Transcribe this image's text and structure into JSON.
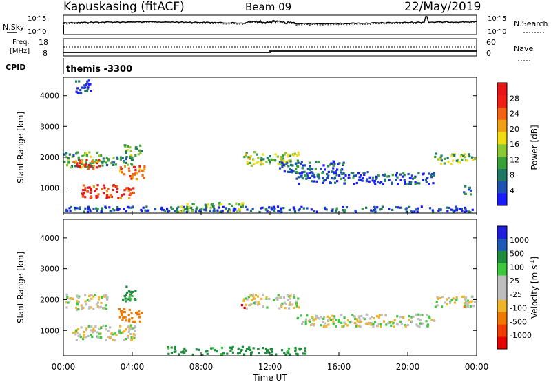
{
  "header": {
    "station": "Kapuskasing (fitACF)",
    "beam": "Beam 09",
    "date": "22/May/2019"
  },
  "side_labels": {
    "nsky": "N.Sky",
    "nsearch": "N.Search",
    "freq_line1": "Freq.",
    "freq_line2": "[MHz]",
    "nave": "Nave",
    "cpid": "CPID"
  },
  "panel_ticks": {
    "noise_left_top": "10^5",
    "noise_left_bottom": "10^0",
    "noise_right_top": "10^5",
    "noise_right_bottom": "10^0",
    "freq_left_top": "18",
    "freq_left_bottom": "8",
    "nave_right_top": "60",
    "nave_right_bottom": "0"
  },
  "cpid_text": "themis -3300",
  "colors": {
    "ground_scatter": "#bebebe",
    "power_scale": [
      "#1a1aff",
      "#1e4fb4",
      "#1e7864",
      "#37a037",
      "#8cc832",
      "#f0dc14",
      "#f0a014",
      "#f06414",
      "#f01e14",
      "#e61414"
    ],
    "velocity_scale": [
      "#e60000",
      "#f03c00",
      "#f07800",
      "#f0b428",
      "#bebebe",
      "#bebebe",
      "#3cc83c",
      "#1e8c3c",
      "#1e5ab4",
      "#1e1edc"
    ]
  },
  "chart_data": [
    {
      "type": "heatmap",
      "title": "",
      "xlabel": "",
      "ylabel": "Slant Range [km]",
      "colorbar_label": "Power [dB]",
      "colorbar_ticks": [
        "4",
        "8",
        "12",
        "16",
        "20",
        "24",
        "28"
      ],
      "xlim": [
        "00:00",
        "24:00"
      ],
      "ylim": [
        180,
        4600
      ],
      "yticks": [
        1000,
        2000,
        3000,
        4000
      ],
      "blobs": [
        {
          "t0": 0.0,
          "t1": 2.3,
          "r0": 1700,
          "r1": 2200,
          "p": 12
        },
        {
          "t0": 0.4,
          "t1": 2.2,
          "r0": 1650,
          "r1": 1950,
          "p": 24
        },
        {
          "t0": 2.0,
          "t1": 4.0,
          "r0": 1750,
          "r1": 2050,
          "p": 10
        },
        {
          "t0": 1.0,
          "t1": 4.1,
          "r0": 700,
          "r1": 1150,
          "p": 26
        },
        {
          "t0": 3.2,
          "t1": 4.7,
          "r0": 1300,
          "r1": 1750,
          "p": 22
        },
        {
          "t0": 3.5,
          "t1": 4.6,
          "r0": 2000,
          "r1": 2450,
          "p": 12
        },
        {
          "t0": 6.5,
          "t1": 10.5,
          "r0": 250,
          "r1": 550,
          "p": 14
        },
        {
          "t0": 10.4,
          "t1": 13.6,
          "r0": 1750,
          "r1": 2200,
          "p": 14
        },
        {
          "t0": 12.5,
          "t1": 16.3,
          "r0": 1500,
          "r1": 1900,
          "p": 8
        },
        {
          "t0": 13.5,
          "t1": 21.5,
          "r0": 1150,
          "r1": 1550,
          "p": 6
        },
        {
          "t0": 21.5,
          "t1": 24.0,
          "r0": 1800,
          "r1": 2150,
          "p": 14
        },
        {
          "t0": 23.2,
          "t1": 24.0,
          "r0": 800,
          "r1": 1100,
          "p": 8
        },
        {
          "t0": 0.0,
          "t1": 24.0,
          "r0": 180,
          "r1": 420,
          "p": 6
        },
        {
          "t0": 0.6,
          "t1": 1.6,
          "r0": 4100,
          "r1": 4550,
          "p": 4
        }
      ]
    },
    {
      "type": "heatmap",
      "title": "",
      "xlabel": "Time UT",
      "ylabel": "Slant Range [km]",
      "colorbar_label": "Velocity [m s^-1]",
      "colorbar_ticks": [
        "1000",
        "500",
        "100",
        "25",
        "-25",
        "-100",
        "-500",
        "-1000"
      ],
      "xlim": [
        "00:00",
        "24:00"
      ],
      "xticks": [
        "00:00",
        "04:00",
        "08:00",
        "12:00",
        "16:00",
        "20:00",
        "00:00"
      ],
      "ylim": [
        180,
        4600
      ],
      "yticks": [
        1000,
        2000,
        3000,
        4000
      ],
      "blobs": [
        {
          "t0": 0.0,
          "t1": 2.5,
          "r0": 1700,
          "r1": 2200,
          "v": 0
        },
        {
          "t0": 0.5,
          "t1": 4.2,
          "r0": 700,
          "r1": 1200,
          "v": 0
        },
        {
          "t0": 3.2,
          "t1": 4.6,
          "r0": 1300,
          "r1": 1750,
          "v": -150
        },
        {
          "t0": 3.4,
          "t1": 4.2,
          "r0": 1950,
          "r1": 2450,
          "v": 150
        },
        {
          "t0": 10.4,
          "t1": 13.6,
          "r0": 1750,
          "r1": 2200,
          "v": 0
        },
        {
          "t0": 13.5,
          "t1": 21.5,
          "r0": 1150,
          "r1": 1550,
          "v": 0
        },
        {
          "t0": 21.5,
          "t1": 24.0,
          "r0": 1800,
          "r1": 2150,
          "v": 0
        },
        {
          "t0": 6.0,
          "t1": 14.0,
          "r0": 200,
          "r1": 500,
          "v": 150
        },
        {
          "t0": 10.3,
          "t1": 10.5,
          "r0": 1750,
          "r1": 1950,
          "v": -600
        },
        {
          "t0": 23.2,
          "t1": 23.3,
          "r0": 1750,
          "r1": 1950,
          "v": -300
        }
      ]
    }
  ]
}
